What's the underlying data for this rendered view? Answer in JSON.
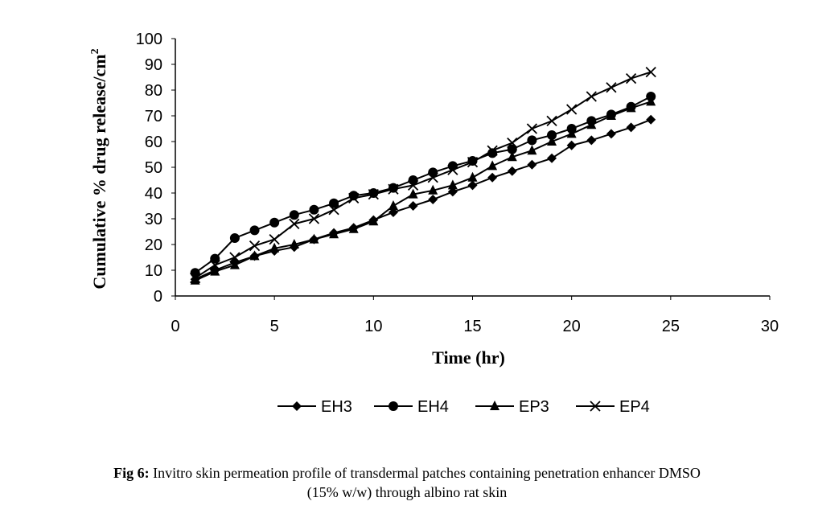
{
  "chart_data": {
    "type": "line",
    "xlabel": "Time (hr)",
    "ylabel": "Cumulative % drug release/cm2",
    "xlim": [
      0,
      30
    ],
    "ylim": [
      0,
      100
    ],
    "xticks": [
      0,
      5,
      10,
      15,
      20,
      25,
      30
    ],
    "yticks": [
      0,
      10,
      20,
      30,
      40,
      50,
      60,
      70,
      80,
      90,
      100
    ],
    "grid": false,
    "legend_position": "overlaid middle",
    "x": [
      1,
      2,
      3,
      4,
      5,
      6,
      7,
      8,
      9,
      10,
      11,
      12,
      13,
      14,
      15,
      16,
      17,
      18,
      19,
      20,
      21,
      22,
      23,
      24
    ],
    "series": [
      {
        "name": "EH3",
        "marker": "diamond",
        "values": [
          6.5,
          10,
          13,
          15.5,
          17.5,
          19,
          22,
          24.5,
          26.5,
          29.5,
          32.5,
          35,
          37.5,
          40.5,
          43,
          46,
          48.5,
          51,
          53.5,
          58.5,
          60.5,
          63,
          65.5,
          68.5
        ]
      },
      {
        "name": "EH4",
        "marker": "circle",
        "values": [
          9,
          14.5,
          22.5,
          25.5,
          28.5,
          31.5,
          33.5,
          36,
          39,
          40,
          42,
          45,
          48,
          50.5,
          52.5,
          55.5,
          57,
          60.5,
          62.5,
          65,
          68,
          70.5,
          73.5,
          77.5
        ]
      },
      {
        "name": "EP3",
        "marker": "triangle",
        "values": [
          6,
          9.5,
          12,
          15.5,
          18.5,
          20,
          22,
          24,
          26,
          29,
          35,
          39.5,
          41,
          43,
          46,
          50.5,
          54,
          56.5,
          60,
          63,
          66.5,
          70,
          73,
          75.5
        ]
      },
      {
        "name": "EP4",
        "marker": "x",
        "values": [
          7,
          12,
          15,
          19.5,
          22,
          28,
          30,
          33.5,
          38,
          39.5,
          41.5,
          43,
          46,
          49,
          52,
          56.5,
          59.5,
          65,
          68,
          72.5,
          77.5,
          81,
          84.5,
          87
        ]
      }
    ]
  },
  "caption": {
    "label": "Fig 6:",
    "line1": " Invitro skin permeation profile of transdermal patches containing penetration enhancer DMSO",
    "line2": "(15% w/w) through albino rat skin"
  }
}
